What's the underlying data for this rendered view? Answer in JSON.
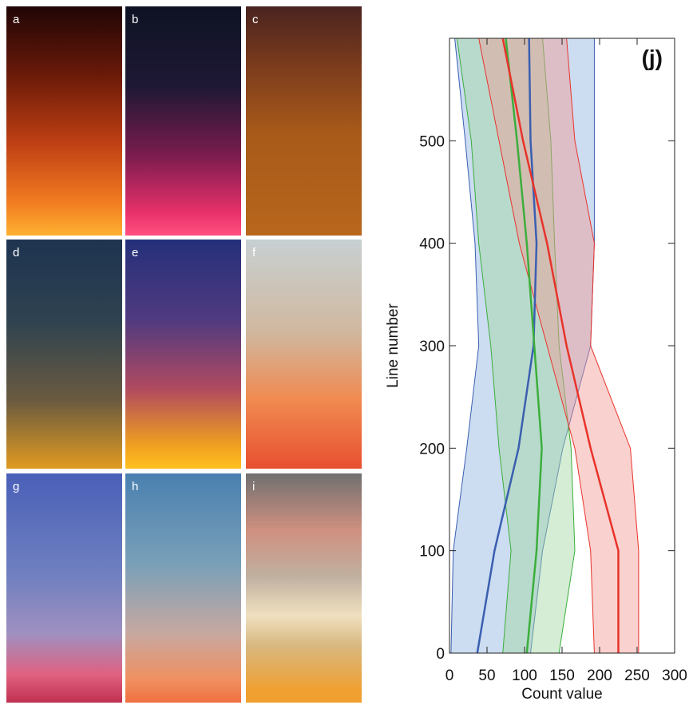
{
  "panels": [
    "a",
    "b",
    "c",
    "d",
    "e",
    "f",
    "g",
    "h",
    "i"
  ],
  "chart_data": {
    "type": "band-line",
    "title": "(j)",
    "x_label": "Count value",
    "y_label": "Line number",
    "line_number": [
      0,
      100,
      200,
      300,
      400,
      500,
      600
    ],
    "series": [
      {
        "color": "#3a5fb0",
        "band_color": "#8fb2e0",
        "values": [
          37,
          60,
          92,
          112,
          116,
          108,
          106
        ],
        "low": [
          2,
          5,
          23,
          39,
          34,
          21,
          7
        ],
        "high": [
          108,
          124,
          151,
          188,
          193,
          193,
          193
        ]
      },
      {
        "color": "#3cae3c",
        "band_color": "#9fd89f",
        "values": [
          103,
          116,
          123,
          113,
          103,
          90,
          75
        ],
        "low": [
          71,
          82,
          66,
          55,
          39,
          29,
          10
        ],
        "high": [
          146,
          167,
          162,
          146,
          140,
          135,
          124
        ]
      },
      {
        "color": "#e8332a",
        "band_color": "#f29a95",
        "values": [
          225,
          225,
          188,
          156,
          130,
          98,
          71
        ],
        "low": [
          193,
          188,
          167,
          130,
          93,
          66,
          39
        ],
        "high": [
          252,
          252,
          241,
          188,
          193,
          167,
          156
        ]
      }
    ],
    "xlim": [
      0,
      300
    ],
    "xticks": [
      0,
      50,
      100,
      150,
      200,
      250,
      300
    ],
    "ylim": [
      0,
      600
    ],
    "yticks": [
      0,
      100,
      200,
      300,
      400,
      500
    ]
  }
}
